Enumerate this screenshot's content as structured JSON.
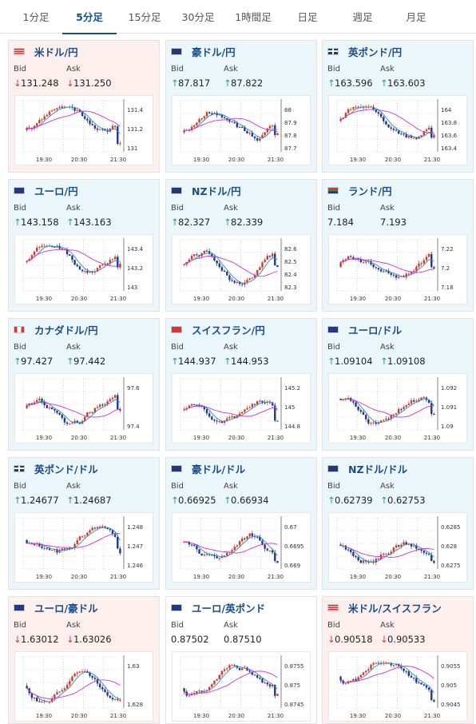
{
  "tabs": [
    "1分足",
    "5分足",
    "15分足",
    "30分足",
    "1時間足",
    "日足",
    "週足",
    "月足"
  ],
  "active_tab": "5分足",
  "labels": {
    "bid": "Bid",
    "ask": "Ask"
  },
  "colors": {
    "title": "#1a4d8c",
    "down_bg": "#fdefee",
    "up_bg": "#ebf6fb",
    "candle_up": "#d23a2a",
    "candle_down": "#1f3a8a",
    "ma_short": "#3a86c8",
    "ma_long": "#cc33cc"
  },
  "time_labels": [
    "19:30",
    "20:30",
    "21:30"
  ],
  "pairs": [
    {
      "name": "米ドル/円",
      "flag": "us-flag",
      "trend": "down",
      "bid_dir": "down",
      "ask_dir": "down",
      "bid": "131.248",
      "ask": "131.250",
      "y_ticks": [
        "131.4",
        "131.2",
        "131"
      ]
    },
    {
      "name": "豪ドル/円",
      "flag": "au-flag",
      "trend": "up",
      "bid_dir": "up",
      "ask_dir": "up",
      "bid": "87.817",
      "ask": "87.822",
      "y_ticks": [
        "88",
        "87.9",
        "87.8",
        "87.7"
      ]
    },
    {
      "name": "英ポンド/円",
      "flag": "gb-flag",
      "trend": "up",
      "bid_dir": "up",
      "ask_dir": "up",
      "bid": "163.596",
      "ask": "163.603",
      "y_ticks": [
        "164",
        "163.8",
        "163.6",
        "163.4"
      ]
    },
    {
      "name": "ユーロ/円",
      "flag": "eu-flag",
      "trend": "up",
      "bid_dir": "up",
      "ask_dir": "up",
      "bid": "143.158",
      "ask": "143.163",
      "y_ticks": [
        "143.4",
        "143.2",
        "143"
      ]
    },
    {
      "name": "NZドル/円",
      "flag": "nz-flag",
      "trend": "up",
      "bid_dir": "up",
      "ask_dir": "up",
      "bid": "82.327",
      "ask": "82.339",
      "y_ticks": [
        "82.6",
        "82.5",
        "82.4",
        "82.3"
      ]
    },
    {
      "name": "ランド/円",
      "flag": "za-flag",
      "trend": "up",
      "bid_dir": "",
      "ask_dir": "",
      "bid": "7.184",
      "ask": "7.193",
      "y_ticks": [
        "7.22",
        "7.2",
        "7.18"
      ]
    },
    {
      "name": "カナダドル/円",
      "flag": "ca-flag",
      "trend": "up",
      "bid_dir": "up",
      "ask_dir": "up",
      "bid": "97.427",
      "ask": "97.442",
      "y_ticks": [
        "97.6",
        "97.4"
      ]
    },
    {
      "name": "スイスフラン/円",
      "flag": "ch-flag",
      "trend": "up",
      "bid_dir": "up",
      "ask_dir": "up",
      "bid": "144.937",
      "ask": "144.953",
      "y_ticks": [
        "145.2",
        "145",
        "144.8"
      ]
    },
    {
      "name": "ユーロ/ドル",
      "flag": "eu-us-flag",
      "trend": "up",
      "bid_dir": "up",
      "ask_dir": "up",
      "bid": "1.09104",
      "ask": "1.09108",
      "y_ticks": [
        "1.092",
        "1.091",
        "1.09"
      ]
    },
    {
      "name": "英ポンド/ドル",
      "flag": "gb-us-flag",
      "trend": "up",
      "bid_dir": "up",
      "ask_dir": "up",
      "bid": "1.24677",
      "ask": "1.24687",
      "y_ticks": [
        "1.248",
        "1.247",
        "1.246"
      ]
    },
    {
      "name": "豪ドル/ドル",
      "flag": "au-us-flag",
      "trend": "up",
      "bid_dir": "up",
      "ask_dir": "up",
      "bid": "0.66925",
      "ask": "0.66934",
      "y_ticks": [
        "0.67",
        "0.6695",
        "0.669"
      ]
    },
    {
      "name": "NZドル/ドル",
      "flag": "nz-us-flag",
      "trend": "up",
      "bid_dir": "up",
      "ask_dir": "up",
      "bid": "0.62739",
      "ask": "0.62753",
      "y_ticks": [
        "0.6285",
        "0.628",
        "0.6275"
      ]
    },
    {
      "name": "ユーロ/豪ドル",
      "flag": "eu-au-flag",
      "trend": "down",
      "bid_dir": "down",
      "ask_dir": "down",
      "bid": "1.63012",
      "ask": "1.63026",
      "y_ticks": [
        "1.63",
        "1.628"
      ]
    },
    {
      "name": "ユーロ/英ポンド",
      "flag": "eu-gb-flag",
      "trend": "flat",
      "bid_dir": "",
      "ask_dir": "",
      "bid": "0.87502",
      "ask": "0.87510",
      "y_ticks": [
        "0.8755",
        "0.875",
        "0.8745"
      ]
    },
    {
      "name": "米ドル/スイスフラン",
      "flag": "us-ch-flag",
      "trend": "down",
      "bid_dir": "down",
      "ask_dir": "down",
      "bid": "0.90518",
      "ask": "0.90533",
      "y_ticks": [
        "0.9055",
        "0.905",
        "0.9045"
      ]
    }
  ]
}
